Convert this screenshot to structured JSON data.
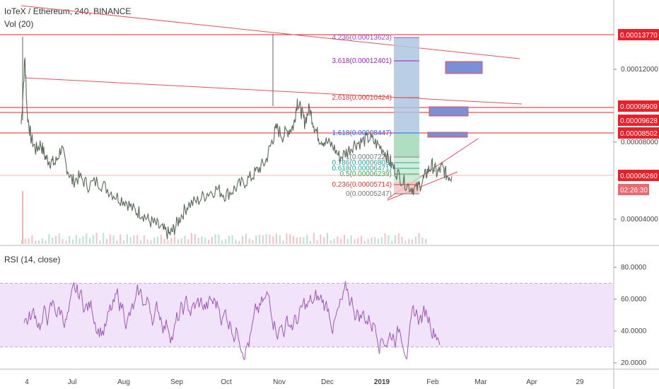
{
  "header": {
    "symbol_line": "IoTeX / Ethereum, 240, BINANCE",
    "volume_label": "Vol (20)",
    "rsi_label": "RSI (14, close)"
  },
  "chart_data": {
    "type": "line",
    "symbol": "IoTeX / Ethereum",
    "interval": "240",
    "exchange": "BINANCE",
    "price_axis_ticks": [
      "0.00004000",
      "0.00008000",
      "0.00012000"
    ],
    "price_tags": [
      {
        "label": "0.00013770",
        "value": 0.0001377,
        "color": "#e8202a"
      },
      {
        "label": "0.00009909",
        "value": 9.909e-05,
        "color": "#e8202a"
      },
      {
        "label": "0.00009628",
        "value": 9.628e-05,
        "color": "#e8202a"
      },
      {
        "label": "0.00008502",
        "value": 8.502e-05,
        "color": "#e8202a"
      },
      {
        "label": "0.00006260",
        "value": 6.26e-05,
        "color": "#e8202a"
      },
      {
        "label": "02:26:30",
        "value": 5.85e-05,
        "color": "#e86a72"
      }
    ],
    "x_tick_labels": [
      "4",
      "Jul",
      "Aug",
      "Sep",
      "Oct",
      "Nov",
      "Dec",
      "2019",
      "Feb",
      "Mar",
      "Apr",
      "29"
    ],
    "price_points": [
      [
        0.0,
        8.9e-05
      ],
      [
        0.006,
        0.000122
      ],
      [
        0.01,
        9.4e-05
      ],
      [
        0.016,
        8.2e-05
      ],
      [
        0.024,
        7.6e-05
      ],
      [
        0.032,
        7.9e-05
      ],
      [
        0.04,
        7.2e-05
      ],
      [
        0.048,
        7e-05
      ],
      [
        0.056,
        6.9e-05
      ],
      [
        0.066,
        7.7e-05
      ],
      [
        0.074,
        6.8e-05
      ],
      [
        0.084,
        6e-05
      ],
      [
        0.096,
        6.2e-05
      ],
      [
        0.11,
        5.8e-05
      ],
      [
        0.126,
        6e-05
      ],
      [
        0.142,
        5.6e-05
      ],
      [
        0.158,
        5.2e-05
      ],
      [
        0.172,
        5e-05
      ],
      [
        0.186,
        4.5e-05
      ],
      [
        0.198,
        4.4e-05
      ],
      [
        0.21,
        4e-05
      ],
      [
        0.222,
        3.8e-05
      ],
      [
        0.234,
        3.5e-05
      ],
      [
        0.244,
        3.3e-05
      ],
      [
        0.252,
        3.6e-05
      ],
      [
        0.262,
        4.2e-05
      ],
      [
        0.274,
        4.8e-05
      ],
      [
        0.29,
        5e-05
      ],
      [
        0.306,
        5.4e-05
      ],
      [
        0.322,
        5.6e-05
      ],
      [
        0.336,
        5.3e-05
      ],
      [
        0.35,
        5.6e-05
      ],
      [
        0.364,
        5.9e-05
      ],
      [
        0.378,
        6.2e-05
      ],
      [
        0.39,
        6.6e-05
      ],
      [
        0.402,
        7e-05
      ],
      [
        0.412,
        8e-05
      ],
      [
        0.42,
        8.7e-05
      ],
      [
        0.43,
        8.3e-05
      ],
      [
        0.44,
        8.6e-05
      ],
      [
        0.448,
        8.8e-05
      ],
      [
        0.454,
        0.000101
      ],
      [
        0.46,
        9.6e-05
      ],
      [
        0.466,
        9e-05
      ],
      [
        0.474,
        9.7e-05
      ],
      [
        0.482,
        8.8e-05
      ],
      [
        0.49,
        8.2e-05
      ],
      [
        0.5,
        8e-05
      ],
      [
        0.512,
        7.8e-05
      ],
      [
        0.524,
        7.2e-05
      ],
      [
        0.536,
        7.5e-05
      ],
      [
        0.548,
        7.9e-05
      ],
      [
        0.56,
        8e-05
      ],
      [
        0.572,
        8.2e-05
      ],
      [
        0.584,
        7.9e-05
      ],
      [
        0.596,
        7.6e-05
      ],
      [
        0.606,
        7e-05
      ],
      [
        0.616,
        6.5e-05
      ],
      [
        0.628,
        6e-05
      ],
      [
        0.64,
        5.7e-05
      ],
      [
        0.65,
        5.6e-05
      ],
      [
        0.66,
        6e-05
      ],
      [
        0.668,
        6.5e-05
      ],
      [
        0.676,
        6.8e-05
      ],
      [
        0.684,
        6.4e-05
      ],
      [
        0.692,
        6.7e-05
      ],
      [
        0.7,
        6.3e-05
      ],
      [
        0.708,
        6.25e-05
      ]
    ],
    "rsi": {
      "axis_ticks": [
        "20.0000",
        "40.0000",
        "60.0000",
        "80.0000"
      ],
      "band": [
        30,
        70
      ],
      "series_color": "#9b59b6"
    },
    "fibonacci": {
      "levels": [
        {
          "label": "4.236(0.00013623)",
          "value": 0.00013623,
          "color": "#9c4dcc"
        },
        {
          "label": "3.618(0.00012401)",
          "value": 0.00012401,
          "color": "#9c27b0"
        },
        {
          "label": "2.618(0.00010424)",
          "value": 0.00010424,
          "color": "#e53935"
        },
        {
          "label": "1.618(0.00008447)",
          "value": 8.447e-05,
          "color": "#2962ff"
        },
        {
          "label": "1(0.00007226)",
          "value": 7.226e-05,
          "color": "#777777"
        },
        {
          "label": "0.786(0.00006803)",
          "value": 6.803e-05,
          "color": "#26a69a"
        },
        {
          "label": "0.618(0.00006471)",
          "value": 6.471e-05,
          "color": "#26a69a"
        },
        {
          "label": "0.5(0.00006239)",
          "value": 6.239e-05,
          "color": "#43a047"
        },
        {
          "label": "0.236(0.00005714)",
          "value": 5.714e-05,
          "color": "#e53935"
        },
        {
          "label": "0(0.00005247)",
          "value": 5.247e-05,
          "color": "#777777"
        }
      ]
    }
  }
}
